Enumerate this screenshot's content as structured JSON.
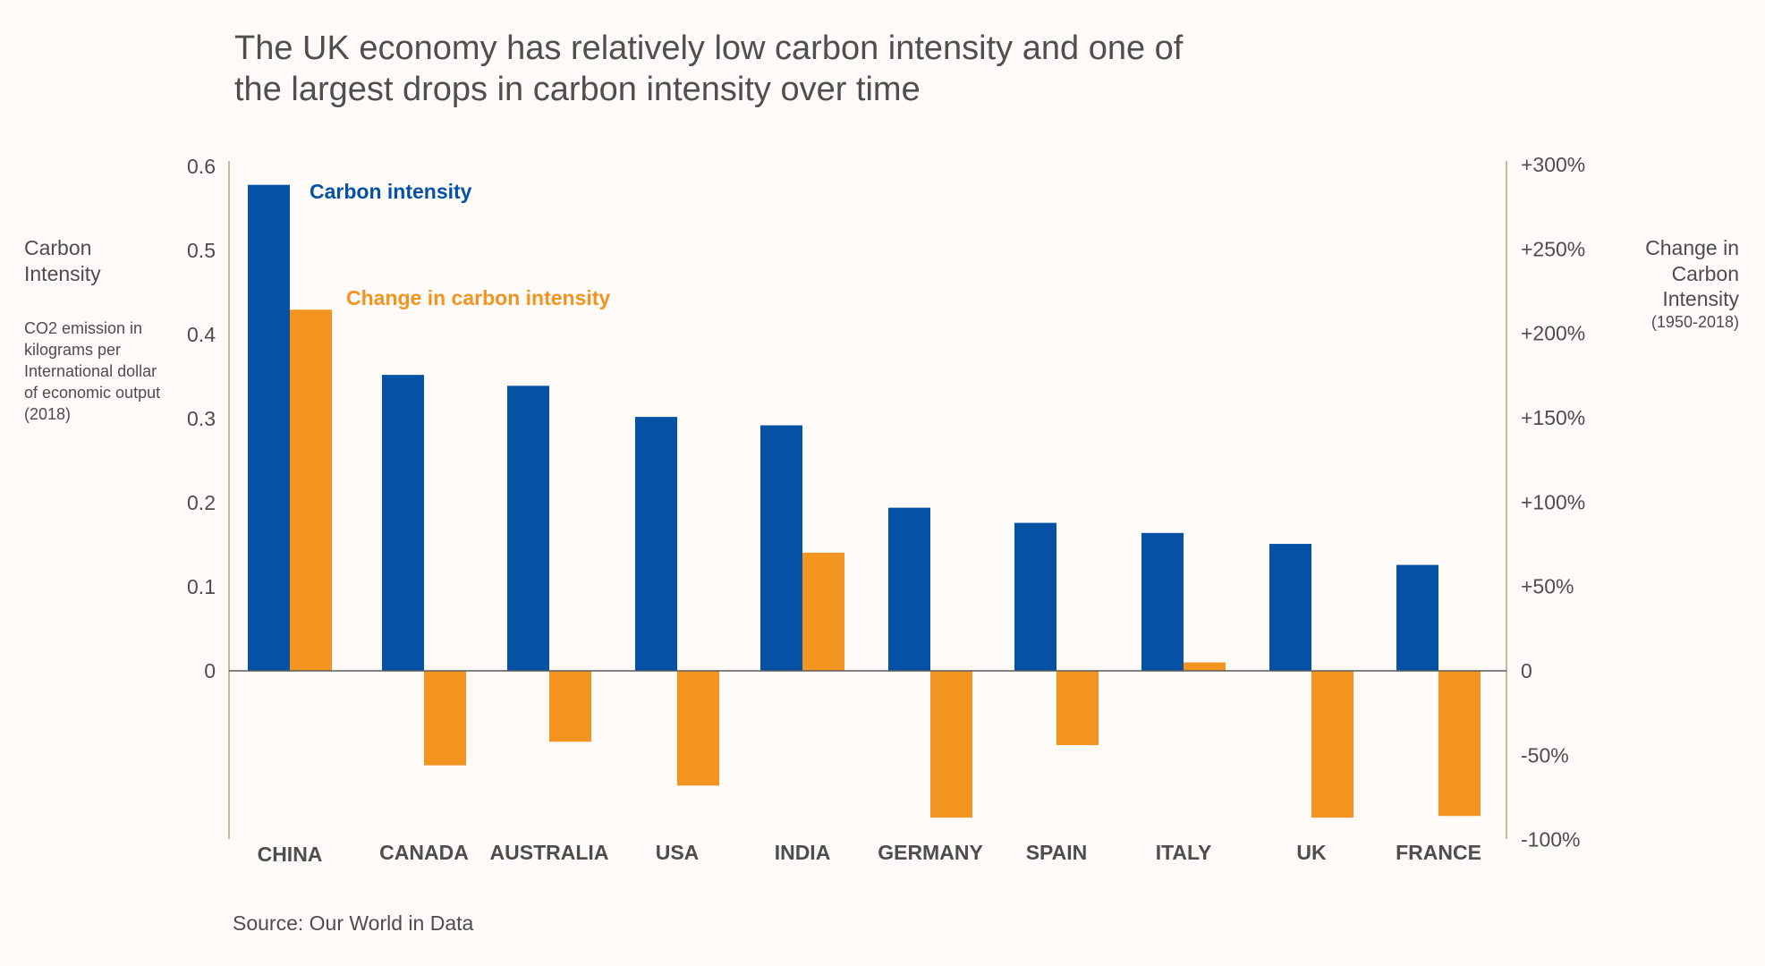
{
  "title_lines": [
    "The UK economy has relatively low carbon intensity and one of",
    "the largest drops in carbon intensity over time"
  ],
  "source": "Source: Our World in Data",
  "colors": {
    "carbon_intensity": "#0451a5",
    "change": "#f39320",
    "axis": "#b5a77a",
    "zero_line": "#5a5a5a"
  },
  "left_axis_label": {
    "main": [
      "Carbon",
      "Intensity"
    ],
    "sub": [
      "CO2 emission in",
      "kilograms per",
      "International dollar",
      "of economic output",
      "(2018)"
    ]
  },
  "right_axis_label": {
    "main": [
      "Change in",
      "Carbon",
      "Intensity"
    ],
    "sub": "(1950-2018)"
  },
  "chart_data": {
    "type": "bar",
    "categories": [
      "CHINA",
      "CANADA",
      "AUSTRALIA",
      "USA",
      "INDIA",
      "GERMANY",
      "SPAIN",
      "ITALY",
      "UK",
      "FRANCE"
    ],
    "series": [
      {
        "name": "Carbon intensity",
        "axis": "left",
        "color": "#0451a5",
        "values": [
          0.578,
          0.352,
          0.339,
          0.302,
          0.292,
          0.194,
          0.176,
          0.164,
          0.151,
          0.126
        ]
      },
      {
        "name": "Change in carbon intensity",
        "axis": "right",
        "color": "#f39320",
        "values": [
          214,
          -56,
          -42,
          -68,
          70,
          -87,
          -44,
          5,
          -87,
          -86
        ]
      }
    ],
    "left_axis": {
      "ylim": [
        -0.2,
        0.6
      ],
      "ticks": [
        0,
        0.1,
        0.2,
        0.3,
        0.4,
        0.5,
        0.6
      ],
      "tick_labels": [
        "0",
        "0.1",
        "0.2",
        "0.3",
        "0.4",
        "0.5",
        "0.6"
      ]
    },
    "right_axis": {
      "ylim": [
        -100,
        300
      ],
      "ticks": [
        -100,
        -50,
        0,
        50,
        100,
        150,
        200,
        250,
        300
      ],
      "tick_labels": [
        "-100%",
        "-50%",
        "0",
        "+50%",
        "+100%",
        "+150%",
        "+200%",
        "+250%",
        "+300%"
      ]
    },
    "legend": {
      "placement": "inline"
    }
  }
}
